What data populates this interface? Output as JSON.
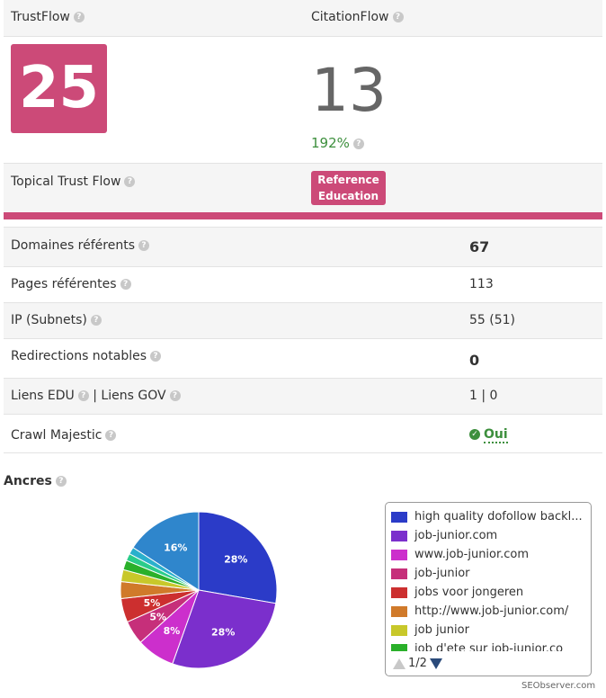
{
  "header": {
    "trustflow_label": "TrustFlow",
    "citationflow_label": "CitationFlow"
  },
  "scores": {
    "trustflow": "25",
    "citationflow": "13",
    "change_pct": "192%"
  },
  "topical": {
    "label": "Topical Trust Flow",
    "badge_line1": "Reference",
    "badge_line2": "Education"
  },
  "metrics": [
    {
      "label": "Domaines référents",
      "value": "67",
      "bold": true
    },
    {
      "label": "Pages référentes",
      "value": "113",
      "bold": false
    },
    {
      "label": "IP (Subnets)",
      "value": "55 (51)",
      "bold": false
    },
    {
      "label": "Redirections notables",
      "value": "0",
      "bold": true
    },
    {
      "label_edu": "Liens EDU",
      "sep": "|",
      "label_gov": "Liens GOV",
      "value": "1 | 0",
      "bold": false
    },
    {
      "label": "Crawl Majestic",
      "value": "Oui",
      "bold": true
    }
  ],
  "ancres": {
    "title": "Ancres"
  },
  "chart_data": {
    "type": "pie",
    "title": "",
    "slices": [
      {
        "label": "high quality dofollow backl...",
        "value": 28,
        "color": "#2b3bc8"
      },
      {
        "label": "job-junior.com",
        "value": 28,
        "color": "#7b2fcc"
      },
      {
        "label": "www.job-junior.com",
        "value": 8,
        "color": "#cc2fcc"
      },
      {
        "label": "job-junior",
        "value": 5,
        "color": "#c62f7a"
      },
      {
        "label": "jobs voor jongeren",
        "value": 5,
        "color": "#cc2f2f"
      },
      {
        "label": "http://www.job-junior.com/",
        "value": 3.5,
        "color": "#d07a2a"
      },
      {
        "label": "job junior",
        "value": 2.5,
        "color": "#c8c82a"
      },
      {
        "label": "job d'ete sur job-junior.co",
        "value": 2,
        "color": "#2ab02a"
      },
      {
        "label": "",
        "value": 1.5,
        "color": "#2acc8a"
      },
      {
        "label": "",
        "value": 1.5,
        "color": "#2ab0cc"
      },
      {
        "label": "",
        "value": 16,
        "color": "#2f86cc"
      }
    ],
    "data_labels": [
      "28%",
      "28%",
      "8%",
      "5%",
      "5%",
      "16%"
    ]
  },
  "legend": {
    "page": "1/2"
  },
  "credit": "SEObserver.com"
}
